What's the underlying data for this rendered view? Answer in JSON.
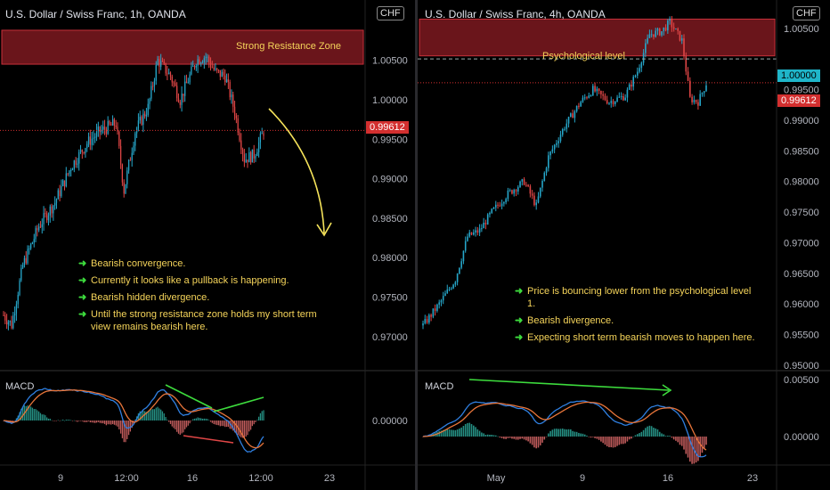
{
  "colors": {
    "up": "#26a6c9",
    "down": "#e04646",
    "macd": "#2f7fe0",
    "signal": "#e8753a",
    "zone": "#8e1c24",
    "ann": "#f5d45a",
    "bullet": "#3ddc3d",
    "price_tag": "#d32f2f",
    "psy_tag": "#1fb5c9"
  },
  "left": {
    "title": "U.S. Dollar / Swiss Franc, 1h, OANDA",
    "currency": "CHF",
    "zone_label": "Strong Resistance Zone",
    "price_tag": "0.99612",
    "price_labels": [
      "1.00500",
      "1.00000",
      "0.99500",
      "0.99000",
      "0.98500",
      "0.98000",
      "0.97500",
      "0.97000"
    ],
    "macd_label": "MACD",
    "macd_price_labels": [
      "0.00000"
    ],
    "time_labels": [
      "9",
      "12:00",
      "16",
      "12:00",
      "23"
    ],
    "notes": [
      "Bearish convergence.",
      "Currently it looks like a pullback is happening.",
      "Bearish hidden divergence.",
      "Until the strong resistance zone holds my short term view remains bearish here."
    ]
  },
  "right": {
    "title": "U.S. Dollar / Swiss Franc, 4h, OANDA",
    "currency": "CHF",
    "zone_label": "Psychological level",
    "psy_tag": "1.00000",
    "price_tag": "0.99612",
    "price_labels": [
      "1.00500",
      "0.99500",
      "0.99000",
      "0.98500",
      "0.98000",
      "0.97500",
      "0.97000",
      "0.96500",
      "0.96000",
      "0.95500",
      "0.95000"
    ],
    "macd_label": "MACD",
    "macd_price_labels": [
      "0.00500",
      "0.00000"
    ],
    "time_labels": [
      "May",
      "9",
      "16",
      "23"
    ],
    "notes": [
      "Price is bouncing lower from the psychological level 1.",
      "Bearish divergence.",
      "Expecting short term bearish moves to happen here."
    ]
  },
  "chart_data": [
    {
      "type": "candlestick",
      "title": "U.S. Dollar / Swiss Franc, 1h, OANDA",
      "ylim": [
        0.9675,
        1.0115
      ],
      "last_price": 0.99612,
      "resistance_zone": [
        1.0045,
        1.0088
      ],
      "anchors": [
        [
          0,
          0.9727
        ],
        [
          5,
          0.9715
        ],
        [
          12,
          0.979
        ],
        [
          22,
          0.984
        ],
        [
          32,
          0.987
        ],
        [
          42,
          0.9915
        ],
        [
          52,
          0.9945
        ],
        [
          60,
          0.996
        ],
        [
          70,
          0.997
        ],
        [
          75,
          0.9885
        ],
        [
          82,
          0.996
        ],
        [
          90,
          0.999
        ],
        [
          96,
          1.005
        ],
        [
          104,
          1.003
        ],
        [
          110,
          1.0
        ],
        [
          120,
          1.005
        ],
        [
          126,
          1.0055
        ],
        [
          132,
          1.0035
        ],
        [
          138,
          1.003
        ],
        [
          144,
          0.9985
        ],
        [
          150,
          0.9925
        ],
        [
          156,
          0.993
        ],
        [
          162,
          0.996
        ]
      ]
    },
    {
      "type": "candlestick",
      "title": "U.S. Dollar / Swiss Franc, 4h, OANDA",
      "ylim": [
        0.95,
        1.007
      ],
      "last_price": 0.99612,
      "psychological_level": 1.0,
      "zone": [
        1.0005,
        1.0065
      ],
      "anchors": [
        [
          0,
          0.9565
        ],
        [
          8,
          0.96
        ],
        [
          16,
          0.964
        ],
        [
          22,
          0.971
        ],
        [
          28,
          0.972
        ],
        [
          34,
          0.975
        ],
        [
          42,
          0.978
        ],
        [
          50,
          0.98
        ],
        [
          56,
          0.976
        ],
        [
          62,
          0.984
        ],
        [
          70,
          0.989
        ],
        [
          78,
          0.993
        ],
        [
          84,
          0.995
        ],
        [
          92,
          0.993
        ],
        [
          100,
          0.994
        ],
        [
          106,
          0.998
        ],
        [
          112,
          1.004
        ],
        [
          118,
          1.0045
        ],
        [
          122,
          1.006
        ],
        [
          128,
          1.003
        ],
        [
          132,
          0.9935
        ],
        [
          136,
          0.993
        ],
        [
          140,
          0.996
        ]
      ]
    }
  ]
}
